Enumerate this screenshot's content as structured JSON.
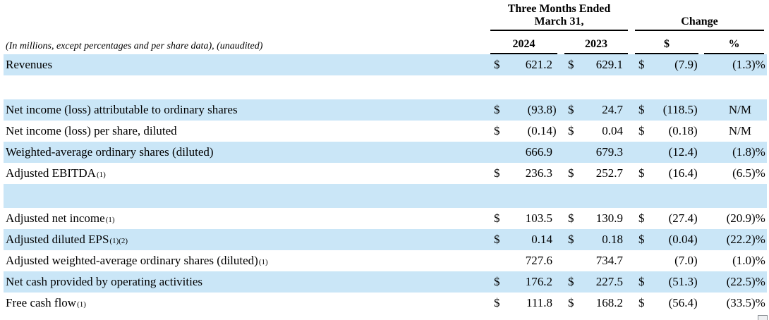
{
  "header": {
    "period_title_line1": "Three Months Ended",
    "period_title_line2": "March 31,",
    "change_title": "Change",
    "note": "(In millions, except percentages and per share data), (unaudited)",
    "columns": [
      "2024",
      "2023",
      "$",
      "%"
    ]
  },
  "colors": {
    "row_highlight": "#cae6f7",
    "text": "#000000",
    "rule": "#000000"
  },
  "table": {
    "rows": [
      {
        "label": "Revenues",
        "sup": "",
        "shaded": true,
        "y2024": {
          "d": "$",
          "v": "621.2"
        },
        "y2023": {
          "d": "$",
          "v": "629.1"
        },
        "chg": {
          "d": "$",
          "v": "(7.9)"
        },
        "pct": "(1.3)%"
      },
      {
        "blank": true,
        "shaded": false
      },
      {
        "label": "Net income (loss) attributable to ordinary shares",
        "sup": "",
        "shaded": true,
        "y2024": {
          "d": "$",
          "v": "(93.8)"
        },
        "y2023": {
          "d": "$",
          "v": "24.7"
        },
        "chg": {
          "d": "$",
          "v": "(118.5)"
        },
        "pct": "N/M"
      },
      {
        "label": "Net income (loss) per share, diluted",
        "sup": "",
        "shaded": false,
        "y2024": {
          "d": "$",
          "v": "(0.14)"
        },
        "y2023": {
          "d": "$",
          "v": "0.04"
        },
        "chg": {
          "d": "$",
          "v": "(0.18)"
        },
        "pct": "N/M"
      },
      {
        "label": "Weighted-average ordinary shares (diluted)",
        "sup": "",
        "shaded": true,
        "y2024": {
          "d": "",
          "v": "666.9"
        },
        "y2023": {
          "d": "",
          "v": "679.3"
        },
        "chg": {
          "d": "",
          "v": "(12.4)"
        },
        "pct": "(1.8)%"
      },
      {
        "label": "Adjusted EBITDA",
        "sup": "(1)",
        "shaded": false,
        "y2024": {
          "d": "$",
          "v": "236.3"
        },
        "y2023": {
          "d": "$",
          "v": "252.7"
        },
        "chg": {
          "d": "$",
          "v": "(16.4)"
        },
        "pct": "(6.5)%"
      },
      {
        "blank": true,
        "shaded": true
      },
      {
        "label": "Adjusted net income",
        "sup": "(1)",
        "shaded": false,
        "y2024": {
          "d": "$",
          "v": "103.5"
        },
        "y2023": {
          "d": "$",
          "v": "130.9"
        },
        "chg": {
          "d": "$",
          "v": "(27.4)"
        },
        "pct": "(20.9)%"
      },
      {
        "label": "Adjusted diluted EPS",
        "sup": "(1)(2)",
        "shaded": true,
        "y2024": {
          "d": "$",
          "v": "0.14"
        },
        "y2023": {
          "d": "$",
          "v": "0.18"
        },
        "chg": {
          "d": "$",
          "v": "(0.04)"
        },
        "pct": "(22.2)%"
      },
      {
        "label": "Adjusted weighted-average ordinary shares (diluted)",
        "sup": "(1)",
        "shaded": false,
        "y2024": {
          "d": "",
          "v": "727.6"
        },
        "y2023": {
          "d": "",
          "v": "734.7"
        },
        "chg": {
          "d": "",
          "v": "(7.0)"
        },
        "pct": "(1.0)%"
      },
      {
        "label": "Net cash provided by operating activities",
        "sup": "",
        "shaded": true,
        "y2024": {
          "d": "$",
          "v": "176.2"
        },
        "y2023": {
          "d": "$",
          "v": "227.5"
        },
        "chg": {
          "d": "$",
          "v": "(51.3)"
        },
        "pct": "(22.5)%"
      },
      {
        "label": "Free cash flow",
        "sup": "(1)",
        "shaded": false,
        "y2024": {
          "d": "$",
          "v": "111.8"
        },
        "y2023": {
          "d": "$",
          "v": "168.2"
        },
        "chg": {
          "d": "$",
          "v": "(56.4)"
        },
        "pct": "(33.5)%"
      }
    ]
  }
}
